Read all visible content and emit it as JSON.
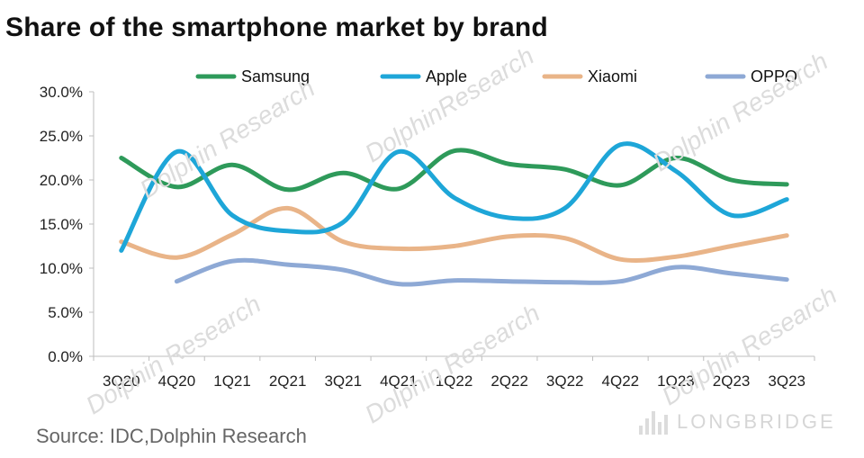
{
  "chart_data": {
    "type": "line",
    "title": "Share of the smartphone market by brand",
    "categories": [
      "3Q20",
      "4Q20",
      "1Q21",
      "2Q21",
      "3Q21",
      "4Q21",
      "1Q22",
      "2Q22",
      "3Q22",
      "4Q22",
      "1Q23",
      "2Q23",
      "3Q23"
    ],
    "ylim": [
      0,
      30
    ],
    "yticks": [
      "0.0%",
      "5.0%",
      "10.0%",
      "15.0%",
      "20.0%",
      "25.0%",
      "30.0%"
    ],
    "grid": false,
    "legend": "top",
    "series": [
      {
        "name": "Samsung",
        "color": "#2e9a5a",
        "values": [
          22.5,
          19.2,
          21.7,
          18.9,
          20.8,
          19.0,
          23.3,
          21.8,
          21.2,
          19.4,
          22.5,
          20.0,
          19.5
        ]
      },
      {
        "name": "Apple",
        "color": "#1ea6d8",
        "values": [
          12.0,
          23.2,
          16.0,
          14.2,
          15.2,
          23.2,
          18.0,
          15.7,
          16.8,
          24.0,
          21.0,
          16.0,
          17.8
        ]
      },
      {
        "name": "Xiaomi",
        "color": "#e9b488",
        "values": [
          13.0,
          11.2,
          13.8,
          16.8,
          13.0,
          12.2,
          12.5,
          13.6,
          13.4,
          11.0,
          11.3,
          12.5,
          13.7
        ]
      },
      {
        "name": "OPPO",
        "color": "#8ea9d5",
        "values": [
          null,
          8.5,
          10.8,
          10.4,
          9.8,
          8.2,
          8.6,
          8.5,
          8.4,
          8.5,
          10.1,
          9.4,
          8.7
        ]
      }
    ]
  },
  "footer": {
    "source": "Source: IDC,Dolphin Research",
    "brand_watermark": "LONGBRIDGE"
  },
  "watermarks": [
    "Dolphin Research",
    "DolphinResearch"
  ]
}
